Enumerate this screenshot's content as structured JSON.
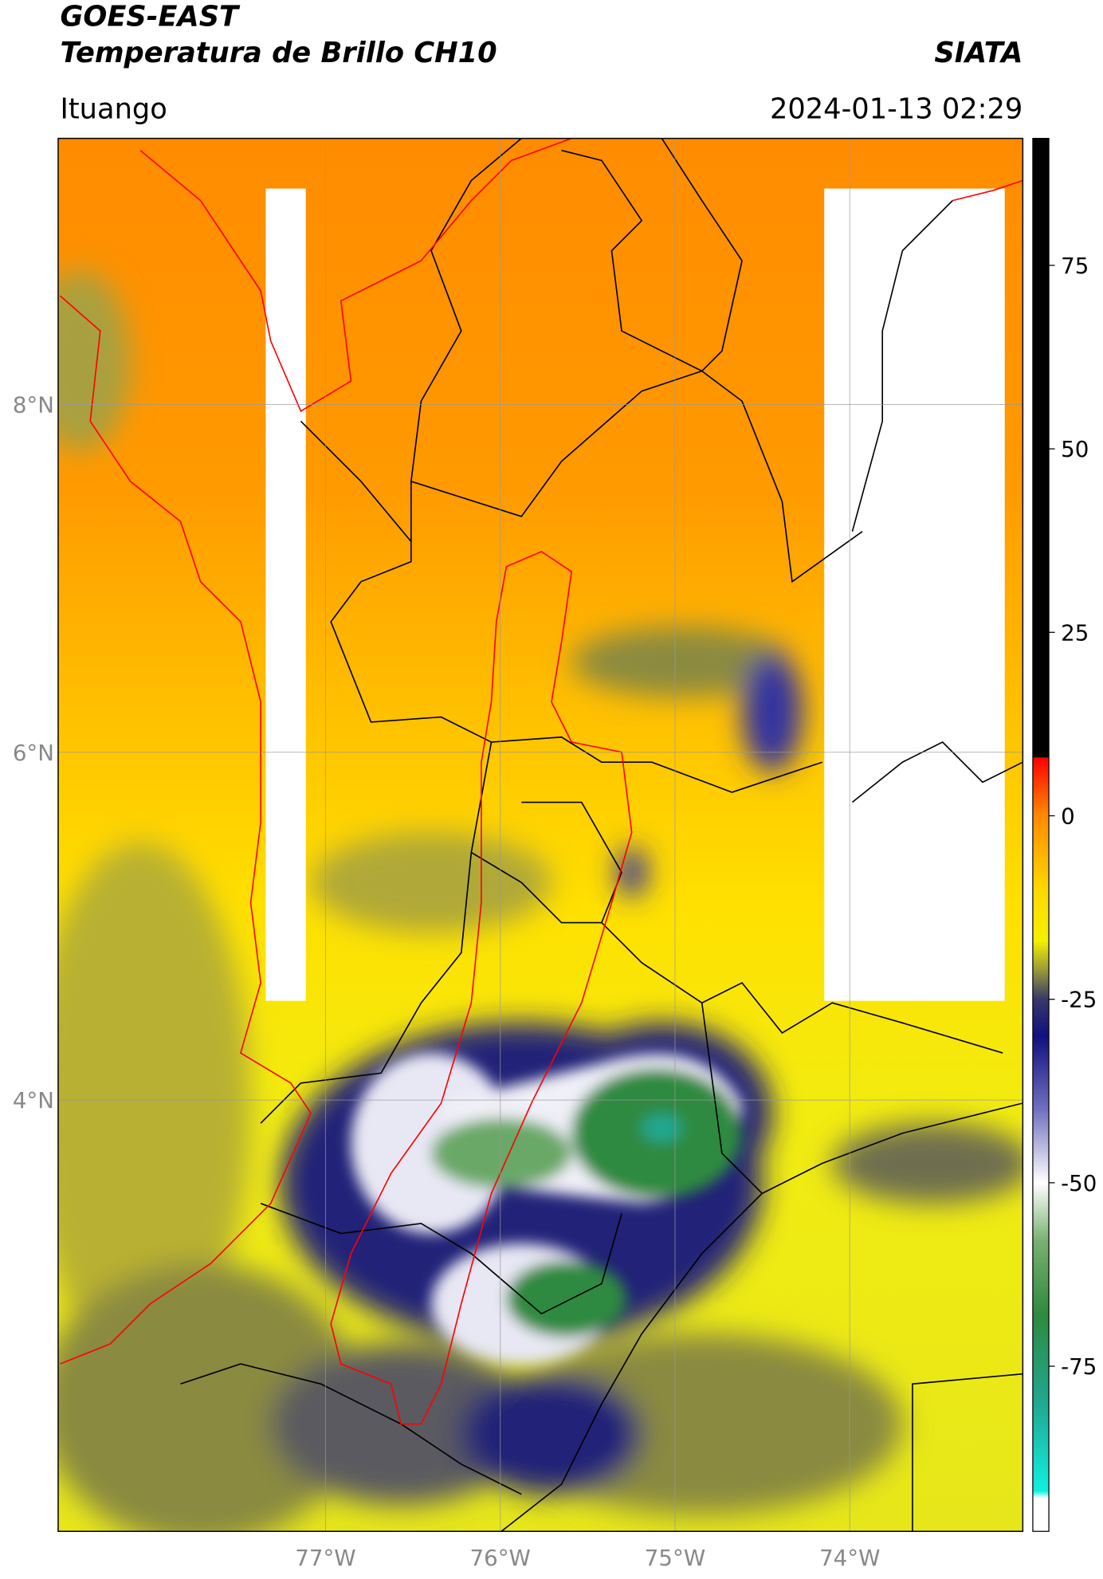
{
  "header": {
    "satellite": "GOES-EAST",
    "product": "Temperatura de Brillo CH10",
    "agency": "SIATA",
    "location": "Ituango",
    "datetime": "2024-01-13 02:29"
  },
  "map": {
    "xlim": [
      -78.53,
      -73.01
    ],
    "ylim": [
      1.52,
      9.53
    ],
    "xticks": [
      {
        "value": -77,
        "label": "77°W"
      },
      {
        "value": -76,
        "label": "76°W"
      },
      {
        "value": -75,
        "label": "75°W"
      },
      {
        "value": -74,
        "label": "74°W"
      }
    ],
    "yticks": [
      {
        "value": 8,
        "label": "8°N"
      },
      {
        "value": 6,
        "label": "6°N"
      },
      {
        "value": 4,
        "label": "4°N"
      }
    ],
    "grid": true
  },
  "colorbar": {
    "lim": [
      -97.5,
      92.3
    ],
    "ticks": [
      75,
      50,
      25,
      0,
      -25,
      -50,
      -75
    ],
    "colors": [
      {
        "value": 92.3,
        "color": "#000000"
      },
      {
        "value": 8,
        "color": "#000000"
      },
      {
        "value": 7.9,
        "color": "#ff0000"
      },
      {
        "value": 0,
        "color": "#ff8a00"
      },
      {
        "value": -10,
        "color": "#ffd800"
      },
      {
        "value": -17,
        "color": "#f5f000"
      },
      {
        "value": -21,
        "color": "#9a9a3a"
      },
      {
        "value": -25,
        "color": "#383868"
      },
      {
        "value": -30,
        "color": "#101080"
      },
      {
        "value": -40,
        "color": "#7070c0"
      },
      {
        "value": -50,
        "color": "#ffffff"
      },
      {
        "value": -58,
        "color": "#78b070"
      },
      {
        "value": -68,
        "color": "#2e8a40"
      },
      {
        "value": -80,
        "color": "#20a890"
      },
      {
        "value": -92,
        "color": "#10f0e0"
      },
      {
        "value": -93,
        "color": "#ffffff"
      },
      {
        "value": -97.5,
        "color": "#ffffff"
      }
    ]
  }
}
